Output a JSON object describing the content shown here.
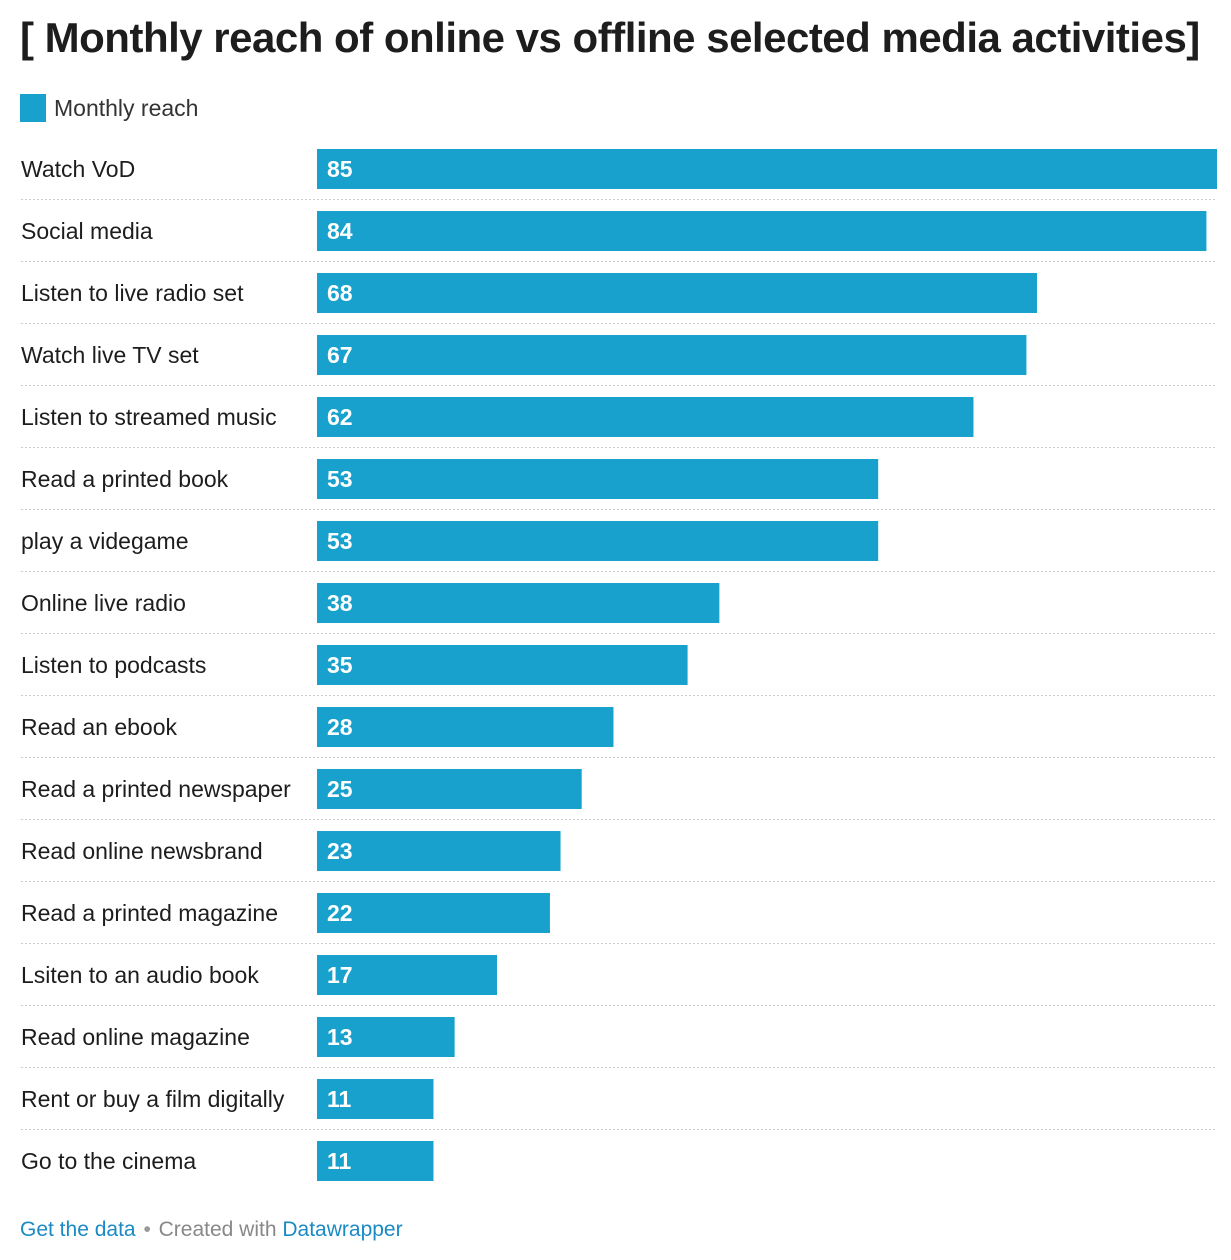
{
  "chart_data": {
    "type": "bar",
    "orientation": "horizontal",
    "title": "[ Monthly reach of online vs offline selected media activities]",
    "series_name": "Monthly reach",
    "color": "#18a1cd",
    "categories": [
      "Watch VoD",
      "Social media",
      "Listen to live radio set",
      "Watch live TV set",
      "Listen to streamed music",
      "Read a printed book",
      "play a videgame",
      "Online live radio",
      "Listen to podcasts",
      "Read an ebook",
      "Read a printed newspaper",
      "Read online newsbrand",
      "Read a printed magazine",
      "Lsiten to an audio book",
      "Read online magazine",
      "Rent or buy a film digitally",
      "Go to the cinema"
    ],
    "values": [
      85,
      84,
      68,
      67,
      62,
      53,
      53,
      38,
      35,
      28,
      25,
      23,
      22,
      17,
      13,
      11,
      11
    ],
    "xlim": [
      0,
      85
    ],
    "grid": false,
    "legend_position": "top-left"
  },
  "footer": {
    "get_data": "Get the data",
    "separator": "•",
    "created_with": "Created with",
    "tool": "Datawrapper"
  }
}
